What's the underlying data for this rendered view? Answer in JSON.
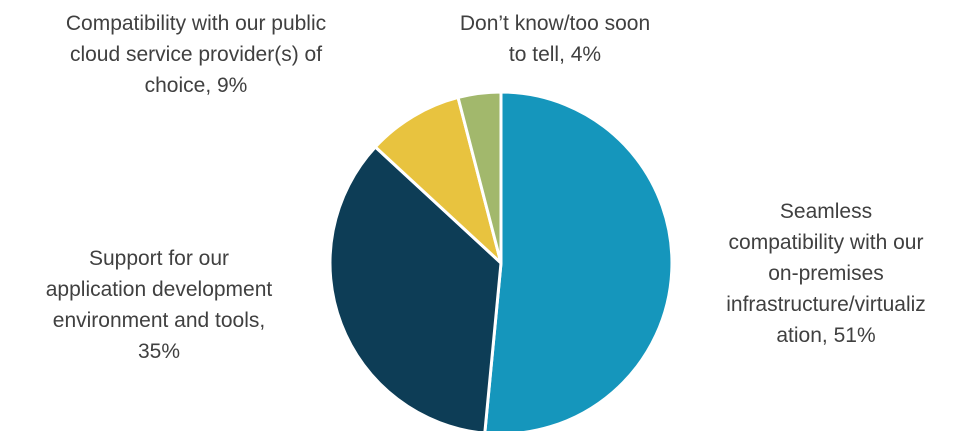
{
  "chart_data": {
    "type": "pie",
    "start_angle_deg": 0,
    "direction": "clockwise",
    "slices": [
      {
        "label": "Seamless compatibility with our on-premises infrastructure/virtualization",
        "display_label": "Seamless\ncompatibility with our\non-premises\ninfrastructure/virtualiz\nation, 51%",
        "value": 51,
        "color": "#1596bc"
      },
      {
        "label": "Support for our application development environment and tools",
        "display_label": "Support for our\napplication development\nenvironment and tools,\n35%",
        "value": 35,
        "color": "#0d3d56"
      },
      {
        "label": "Compatibility with our public cloud service provider(s) of choice",
        "display_label": "Compatibility with our public\ncloud service provider(s) of\nchoice, 9%",
        "value": 9,
        "color": "#e8c33f"
      },
      {
        "label": "Don’t know/too soon to tell",
        "display_label": "Don’t know/too soon\nto tell, 4%",
        "value": 4,
        "color": "#a2b86c"
      }
    ]
  }
}
